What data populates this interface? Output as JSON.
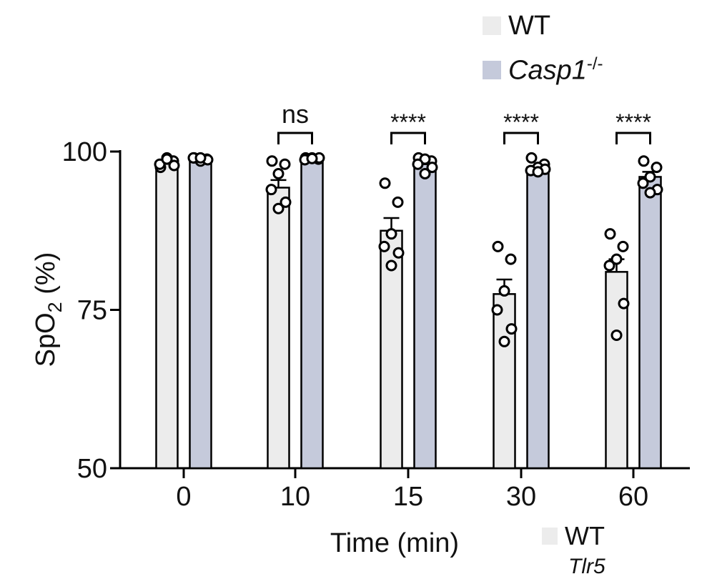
{
  "chart_data": {
    "type": "bar",
    "xlabel": "Time (min)",
    "ylabel_main": "SpO",
    "ylabel_sub": "2",
    "ylabel_tail": " (%)",
    "ylim": [
      50,
      100
    ],
    "yticks": [
      "50",
      "75",
      "100"
    ],
    "categories": [
      "0",
      "10",
      "15",
      "30",
      "60"
    ],
    "series": [
      {
        "name": "WT",
        "color": "#ececec",
        "values": [
          98.3,
          94.3,
          87.5,
          77.5,
          81.0
        ],
        "sem": [
          0.4,
          1.2,
          2.0,
          2.3,
          2.0
        ],
        "points": [
          [
            97.5,
            98.5,
            99.0,
            98.0,
            97.8,
            98.8
          ],
          [
            98.5,
            98.0,
            96.5,
            94.0,
            92.0,
            91.0
          ],
          [
            95.0,
            92.0,
            87.0,
            85.0,
            84.0,
            82.0
          ],
          [
            85.0,
            83.0,
            78.0,
            75.0,
            72.0,
            70.0
          ],
          [
            87.0,
            85.0,
            83.0,
            82.0,
            76.0,
            71.0
          ]
        ]
      },
      {
        "name": "Casp1",
        "name_sup": "-/-",
        "color": "#c5cadb",
        "values": [
          98.8,
          98.8,
          98.0,
          97.5,
          96.0
        ],
        "sem": [
          0.3,
          0.3,
          0.6,
          0.4,
          0.8
        ],
        "points": [
          [
            99.0,
            98.8,
            98.5,
            99.0,
            98.7,
            99.0
          ],
          [
            99.0,
            98.8,
            99.0,
            98.7,
            99.0,
            98.9
          ],
          [
            99.0,
            98.5,
            98.8,
            98.0,
            97.5,
            96.5
          ],
          [
            99.0,
            98.0,
            97.5,
            97.0,
            97.2,
            96.8
          ],
          [
            98.5,
            97.5,
            96.0,
            95.0,
            94.0,
            93.5
          ]
        ]
      }
    ],
    "significance": [
      "",
      "ns",
      "****",
      "****",
      "****"
    ],
    "bottom_legend_label": "WT",
    "bottom_legend_cut": "Tlr5"
  }
}
